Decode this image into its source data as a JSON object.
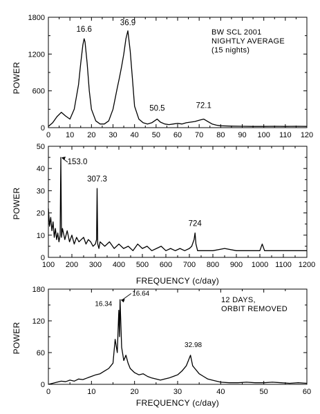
{
  "chart_data": [
    {
      "type": "line",
      "xlabel": "",
      "ylabel": "POWER",
      "xlim": [
        0,
        120
      ],
      "ylim": [
        0,
        1800
      ],
      "xticks": [
        "0",
        "10",
        "20",
        "30",
        "40",
        "50",
        "60",
        "70",
        "80",
        "90",
        "100",
        "110",
        "120"
      ],
      "yticks": [
        "0",
        "600",
        "1200",
        "1800"
      ],
      "annotation": [
        "BW SCL 2001",
        "NIGHTLY AVERAGE",
        "(15 nights)"
      ],
      "peaks": [
        {
          "label": "16.6",
          "x": 16.6,
          "y": 1450
        },
        {
          "label": "36.9",
          "x": 36.9,
          "y": 1580
        },
        {
          "label": "50.5",
          "x": 50.5,
          "y": 140
        },
        {
          "label": "72.1",
          "x": 72.1,
          "y": 140
        }
      ],
      "x": [
        0,
        2,
        4,
        6,
        8,
        10,
        12,
        14,
        15,
        16,
        16.6,
        17,
        18,
        19,
        20,
        22,
        24,
        26,
        28,
        30,
        32,
        33,
        34,
        35,
        36,
        36.9,
        37,
        38,
        39,
        40,
        42,
        44,
        46,
        48,
        50.5,
        52,
        54,
        56,
        58,
        60,
        62,
        64,
        66,
        68,
        70,
        72.1,
        74,
        76,
        78,
        80,
        85,
        90,
        95,
        100,
        105,
        110,
        115,
        120
      ],
      "y": [
        20,
        80,
        180,
        250,
        190,
        140,
        300,
        700,
        1050,
        1350,
        1450,
        1400,
        1050,
        600,
        300,
        110,
        60,
        60,
        110,
        300,
        650,
        820,
        1000,
        1200,
        1450,
        1580,
        1550,
        1250,
        800,
        350,
        140,
        80,
        60,
        80,
        140,
        90,
        60,
        50,
        60,
        70,
        60,
        80,
        90,
        100,
        120,
        140,
        100,
        60,
        40,
        30,
        25,
        22,
        20,
        20,
        22,
        20,
        22,
        20
      ]
    },
    {
      "type": "line",
      "xlabel": "FREQUENCY (c/day)",
      "ylabel": "POWER",
      "xlim": [
        100,
        1200
      ],
      "ylim": [
        0,
        50
      ],
      "xticks": [
        "100",
        "200",
        "300",
        "400",
        "500",
        "600",
        "700",
        "800",
        "900",
        "1000",
        "1100",
        "1200"
      ],
      "yticks": [
        "0",
        "10",
        "20",
        "30",
        "40",
        "50"
      ],
      "peaks": [
        {
          "label": "153.0",
          "x": 153.0,
          "y": 45
        },
        {
          "label": "307.3",
          "x": 307.3,
          "y": 31
        },
        {
          "label": "724",
          "x": 724,
          "y": 11
        }
      ],
      "x": [
        100,
        105,
        110,
        115,
        120,
        125,
        130,
        135,
        140,
        145,
        150,
        153,
        156,
        160,
        170,
        180,
        190,
        200,
        210,
        220,
        230,
        240,
        250,
        260,
        270,
        280,
        290,
        300,
        305,
        307.3,
        310,
        315,
        320,
        340,
        360,
        380,
        400,
        420,
        440,
        460,
        480,
        500,
        520,
        540,
        560,
        580,
        600,
        620,
        640,
        660,
        680,
        700,
        710,
        720,
        724,
        728,
        735,
        750,
        800,
        850,
        900,
        950,
        1000,
        1010,
        1020,
        1050,
        1100,
        1150,
        1200
      ],
      "y": [
        22,
        14,
        18,
        12,
        16,
        9,
        13,
        8,
        11,
        7,
        10,
        45,
        9,
        13,
        8,
        12,
        7,
        10,
        6,
        9,
        7,
        8,
        9,
        6,
        8,
        7,
        5,
        6,
        8,
        31,
        6,
        4,
        7,
        5,
        7,
        4,
        6,
        4,
        5,
        3,
        6,
        4,
        5,
        3,
        4,
        5,
        3,
        4,
        3,
        4,
        3,
        4,
        5,
        8,
        11,
        6,
        3,
        3,
        3,
        4,
        3,
        3,
        3,
        6,
        3,
        3,
        3,
        3,
        3
      ]
    },
    {
      "type": "line",
      "xlabel": "FREQUENCY (c/day)",
      "ylabel": "POWER",
      "xlim": [
        0,
        60
      ],
      "ylim": [
        0,
        180
      ],
      "xticks": [
        "0",
        "10",
        "20",
        "30",
        "40",
        "50",
        "60"
      ],
      "yticks": [
        "0",
        "60",
        "120",
        "180"
      ],
      "annotation": [
        "12 DAYS,",
        "ORBIT REMOVED"
      ],
      "peaks": [
        {
          "label": "16.34",
          "x": 16.34,
          "y": 140
        },
        {
          "label": "16.64",
          "x": 16.64,
          "y": 160
        },
        {
          "label": "32.98",
          "x": 32.98,
          "y": 55
        }
      ],
      "x": [
        0,
        1,
        2,
        3,
        4,
        5,
        6,
        7,
        8,
        9,
        10,
        11,
        12,
        13,
        14,
        15,
        15.5,
        16,
        16.34,
        16.5,
        16.64,
        17,
        17.5,
        18,
        18.5,
        19,
        20,
        21,
        22,
        23,
        24,
        25,
        26,
        27,
        28,
        29,
        30,
        31,
        32,
        32.5,
        32.98,
        33.5,
        34,
        35,
        36,
        37,
        38,
        39,
        40,
        42,
        44,
        46,
        48,
        50,
        52,
        54,
        56,
        58,
        60
      ],
      "y": [
        0,
        2,
        4,
        6,
        5,
        8,
        6,
        10,
        9,
        12,
        15,
        18,
        20,
        25,
        30,
        40,
        85,
        60,
        140,
        90,
        160,
        70,
        45,
        55,
        40,
        30,
        22,
        18,
        20,
        15,
        12,
        10,
        8,
        10,
        12,
        15,
        18,
        25,
        35,
        45,
        55,
        35,
        30,
        20,
        15,
        10,
        8,
        6,
        4,
        3,
        3,
        4,
        3,
        3,
        4,
        3,
        2,
        3,
        2
      ]
    }
  ]
}
